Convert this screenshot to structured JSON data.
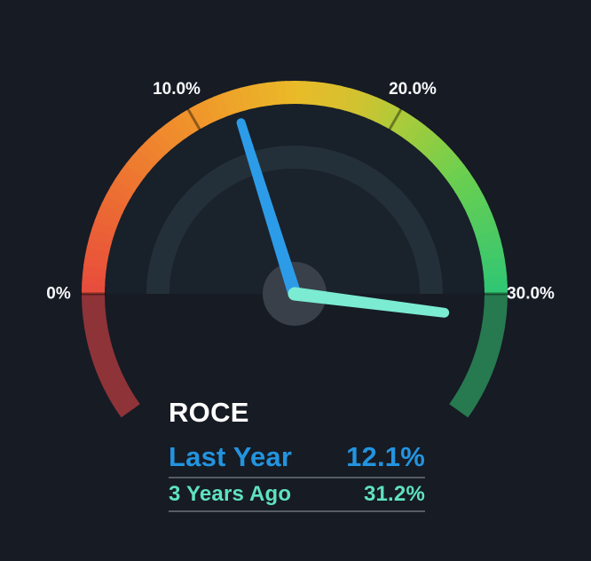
{
  "background_color": "#161B24",
  "chart_data": {
    "type": "gauge",
    "title": "ROCE",
    "unit": "%",
    "min": 0,
    "max": 30,
    "start_angle_deg": 180,
    "end_angle_deg": 0,
    "overflow_angle_deg": 35.5,
    "ticks": [
      {
        "value": 0,
        "label": "0%"
      },
      {
        "value": 10,
        "label": "10.0%"
      },
      {
        "value": 20,
        "label": "20.0%"
      },
      {
        "value": 30,
        "label": "30.0%"
      }
    ],
    "tick_label_color": "#F7F8FA",
    "arc_gradient": [
      [
        0.0,
        "#E74C3C"
      ],
      [
        0.15,
        "#EC6C33"
      ],
      [
        0.33,
        "#F0942B"
      ],
      [
        0.5,
        "#EABA28"
      ],
      [
        0.6,
        "#D2C230"
      ],
      [
        0.67,
        "#AECB39"
      ],
      [
        0.8,
        "#6CCF4F"
      ],
      [
        1.0,
        "#2FC674"
      ]
    ],
    "muted_low_color": "#8E3338",
    "muted_high_color": "#27794F",
    "inner_disc_color": "#18202A",
    "inner_ring_color": "#243039",
    "inner_center_color": "#1A222C",
    "hub_color": "#394049",
    "series": [
      {
        "name": "Last Year",
        "value": 12.1,
        "display": "12.1%",
        "color": "#2394DF",
        "needle_color": "#2C9CE8",
        "needle_length": 202
      },
      {
        "name": "3 Years Ago",
        "value": 31.2,
        "display": "31.2%",
        "color": "#5FE2BD",
        "needle_color": "#7BEBD2",
        "needle_length": 170
      }
    ]
  }
}
